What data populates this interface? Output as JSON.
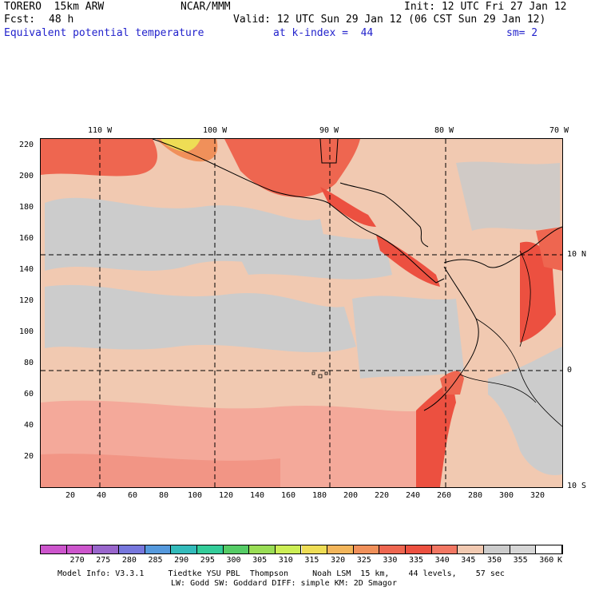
{
  "header": {
    "model": "TORERO  15km ARW",
    "center": "NCAR/MMM",
    "init": "Init: 12 UTC Fri 27 Jan 12",
    "fcst_label": "Fcst:",
    "fcst_value": "48 h",
    "valid": "Valid: 12 UTC Sun 29 Jan 12 (06 CST Sun 29 Jan 12)",
    "field": "Equivalent potential temperature",
    "level": "at k-index =  44",
    "smoothing": "sm= 2"
  },
  "map": {
    "lon_labels": [
      "110 W",
      "100 W",
      "90 W",
      "80 W",
      "70 W"
    ],
    "lat_labels": [
      "10 N",
      "0",
      "10 S"
    ],
    "y_ticks": [
      "220",
      "200",
      "180",
      "160",
      "140",
      "120",
      "100",
      "80",
      "60",
      "40",
      "20"
    ],
    "x_ticks": [
      "20",
      "40",
      "60",
      "80",
      "100",
      "120",
      "140",
      "160",
      "180",
      "200",
      "220",
      "240",
      "260",
      "280",
      "300",
      "320"
    ],
    "grid_x_index": [
      40,
      112,
      185,
      260
    ],
    "grid_y_index": [
      150,
      76
    ],
    "x_range": [
      0,
      332
    ],
    "y_range": [
      0,
      224
    ]
  },
  "colorbar": {
    "labels": [
      "270",
      "275",
      "280",
      "285",
      "290",
      "295",
      "300",
      "305",
      "310",
      "315",
      "320",
      "325",
      "330",
      "335",
      "340",
      "345",
      "350",
      "355",
      "360"
    ],
    "unit": "K",
    "colors": [
      "#cc55cc",
      "#9966cc",
      "#7777dd",
      "#5599dd",
      "#33bbbb",
      "#33cc99",
      "#55cc66",
      "#99dd55",
      "#ccee55",
      "#eedd55",
      "#f2b55a",
      "#f0905a",
      "#ee6650",
      "#ec5040",
      "#f27763",
      "#f1c9b1",
      "#cccccc",
      "#d6d6d6",
      "#ffffff"
    ]
  },
  "footer": {
    "line1": "Model Info: V3.3.1     Tiedtke YSU PBL  Thompson     Noah LSM  15 km,    44 levels,    57 sec",
    "line2": "LW: Godd SW: Goddard DIFF: simple KM: 2D Smagor"
  }
}
